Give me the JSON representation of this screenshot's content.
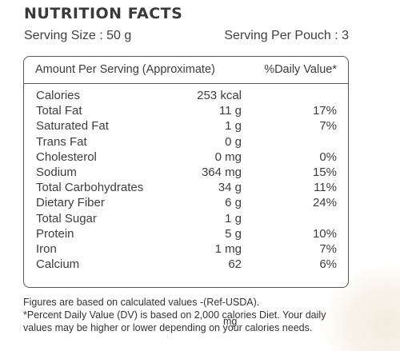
{
  "title": "NUTRITION FACTS",
  "serving": {
    "size": "Serving Size : 50 g",
    "per_pouch": "Serving Per Pouch : 3"
  },
  "table": {
    "header_left": "Amount Per Serving (Approximate)",
    "header_right": "%Daily Value*",
    "rows": [
      {
        "name": "Calories",
        "amount": "253 kcal",
        "dv": ""
      },
      {
        "name": "Total Fat",
        "amount": "11 g",
        "dv": "17%"
      },
      {
        "name": "Saturated Fat",
        "amount": "1 g",
        "dv": "7%"
      },
      {
        "name": "Trans Fat",
        "amount": "0 g",
        "dv": ""
      },
      {
        "name": "Cholesterol",
        "amount": "0 mg",
        "dv": "0%"
      },
      {
        "name": "Sodium",
        "amount": "364 mg",
        "dv": "15%"
      },
      {
        "name": "Total Carbohydrates",
        "amount": "34 g",
        "dv": "11%"
      },
      {
        "name": "Dietary Fiber",
        "amount": "6 g",
        "dv": "24%"
      },
      {
        "name": "Total Sugar",
        "amount": "1 g",
        "dv": ""
      },
      {
        "name": "Protein",
        "amount": "5 g",
        "dv": "10%"
      },
      {
        "name": "Iron",
        "amount": "1 mg",
        "dv": "7%"
      },
      {
        "name": "Calcium",
        "amount": "62",
        "dv": "6%"
      }
    ]
  },
  "footer": {
    "line1": "Figures are based on calculated values -(Ref-USDA).",
    "line2": "*Percent Daily Value (DV) is based on 2,000 calories Diet. Your daily",
    "line3": "values may be higher or lower depending on your calories needs.",
    "stray_unit": "mg"
  }
}
